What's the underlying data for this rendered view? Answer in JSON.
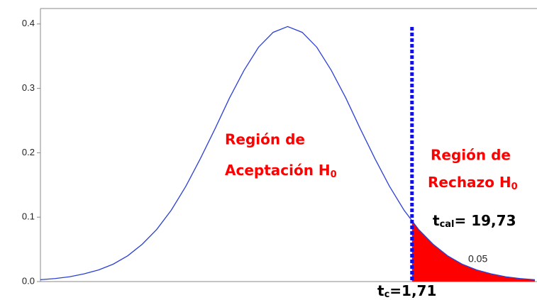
{
  "chart_data": {
    "type": "line",
    "x": [
      -3.4,
      -3.2,
      -3.0,
      -2.8,
      -2.6,
      -2.4,
      -2.2,
      -2.0,
      -1.8,
      -1.6,
      -1.4,
      -1.2,
      -1.0,
      -0.8,
      -0.6,
      -0.4,
      -0.2,
      0,
      0.2,
      0.4,
      0.6,
      0.8,
      1.0,
      1.2,
      1.4,
      1.6,
      1.8,
      2.0,
      2.2,
      2.4,
      2.6,
      2.8,
      3.0,
      3.2,
      3.4
    ],
    "series": [
      {
        "color": "#2b3fd6",
        "values": [
          0.0029,
          0.0047,
          0.0074,
          0.012,
          0.018,
          0.027,
          0.04,
          0.058,
          0.081,
          0.111,
          0.148,
          0.191,
          0.237,
          0.285,
          0.328,
          0.364,
          0.387,
          0.396,
          0.387,
          0.364,
          0.328,
          0.285,
          0.237,
          0.191,
          0.148,
          0.111,
          0.081,
          0.058,
          0.04,
          0.027,
          0.018,
          0.012,
          0.0074,
          0.0047,
          0.0029
        ]
      }
    ],
    "xlim": [
      -3.4,
      3.4
    ],
    "ylim": [
      0,
      0.424
    ],
    "yticks": [
      {
        "value": 0,
        "label": "0.0"
      },
      0.1,
      0.2,
      0.3,
      0.4
    ],
    "critical_value": 1.71,
    "critical_color": "#1010e0",
    "tail_color": "#ff0000",
    "tail_area": 0.05,
    "acceptance": {
      "line1": "Región de",
      "line2": "Aceptación H",
      "sub": "0"
    },
    "rejection": {
      "line1": "Región de",
      "line2": "Rechazo H",
      "sub": "0"
    },
    "t_cal": {
      "symbol": "t",
      "sub": "cal",
      "text": "= 19,73"
    },
    "t_c": {
      "symbol": "t",
      "sub": "c",
      "text": "=1,71"
    }
  }
}
